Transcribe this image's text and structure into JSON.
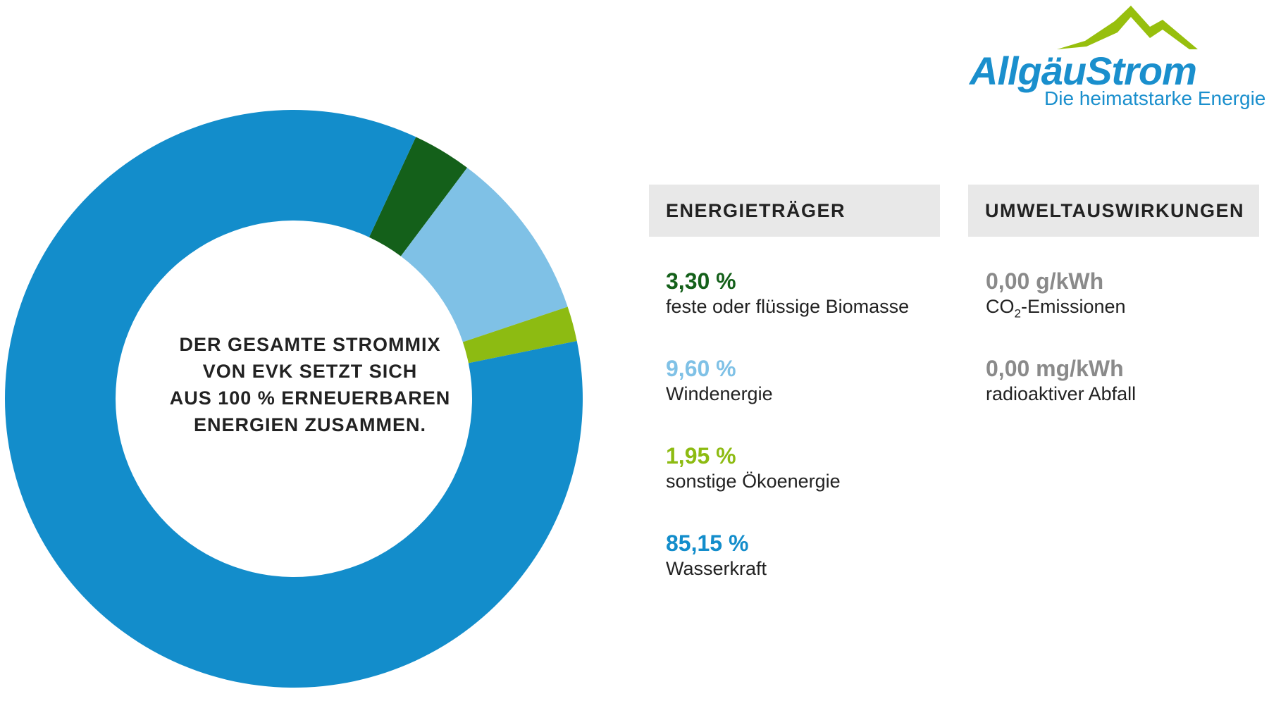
{
  "center_text": {
    "line1": "DER GESAMTE STROMMIX",
    "line2": "VON EVK SETZT SICH",
    "line3": "AUS 100 % ERNEUERBAREN",
    "line4": "ENERGIEN ZUSAMMEN."
  },
  "logo": {
    "wordmark": "AllgäuStrom",
    "tagline": "Die heimatstarke Energie",
    "mountain_color": "#97bf0d",
    "text_color": "#1a8fcd"
  },
  "headers": {
    "energy": "ENERGIETRÄGER",
    "environment": "UMWELTAUSWIRKUNGEN"
  },
  "energy_items": [
    {
      "value": "3,30 %",
      "label": "feste oder flüssige Biomasse",
      "color": "#14601a"
    },
    {
      "value": "9,60 %",
      "label": "Windenergie",
      "color": "#7fc1e6"
    },
    {
      "value": "1,95 %",
      "label": "sonstige Ökoenergie",
      "color": "#8dbb12"
    },
    {
      "value": "85,15 %",
      "label": "Wasserkraft",
      "color": "#138dcb"
    }
  ],
  "environment_items": [
    {
      "value": "0,00 g/kWh",
      "label_main": "CO",
      "label_sub": "2",
      "label_rest": "-Emissionen"
    },
    {
      "value": "0,00 mg/kWh",
      "label": "radioaktiver Abfall"
    }
  ],
  "chart_data": {
    "type": "pie",
    "donut": true,
    "categories": [
      "feste oder flüssige Biomasse",
      "Windenergie",
      "sonstige Ökoenergie",
      "Wasserkraft"
    ],
    "values": [
      3.3,
      9.6,
      1.95,
      85.15
    ],
    "colors": [
      "#14601a",
      "#7fc1e6",
      "#8dbb12",
      "#138dcb"
    ],
    "unit": "%"
  }
}
